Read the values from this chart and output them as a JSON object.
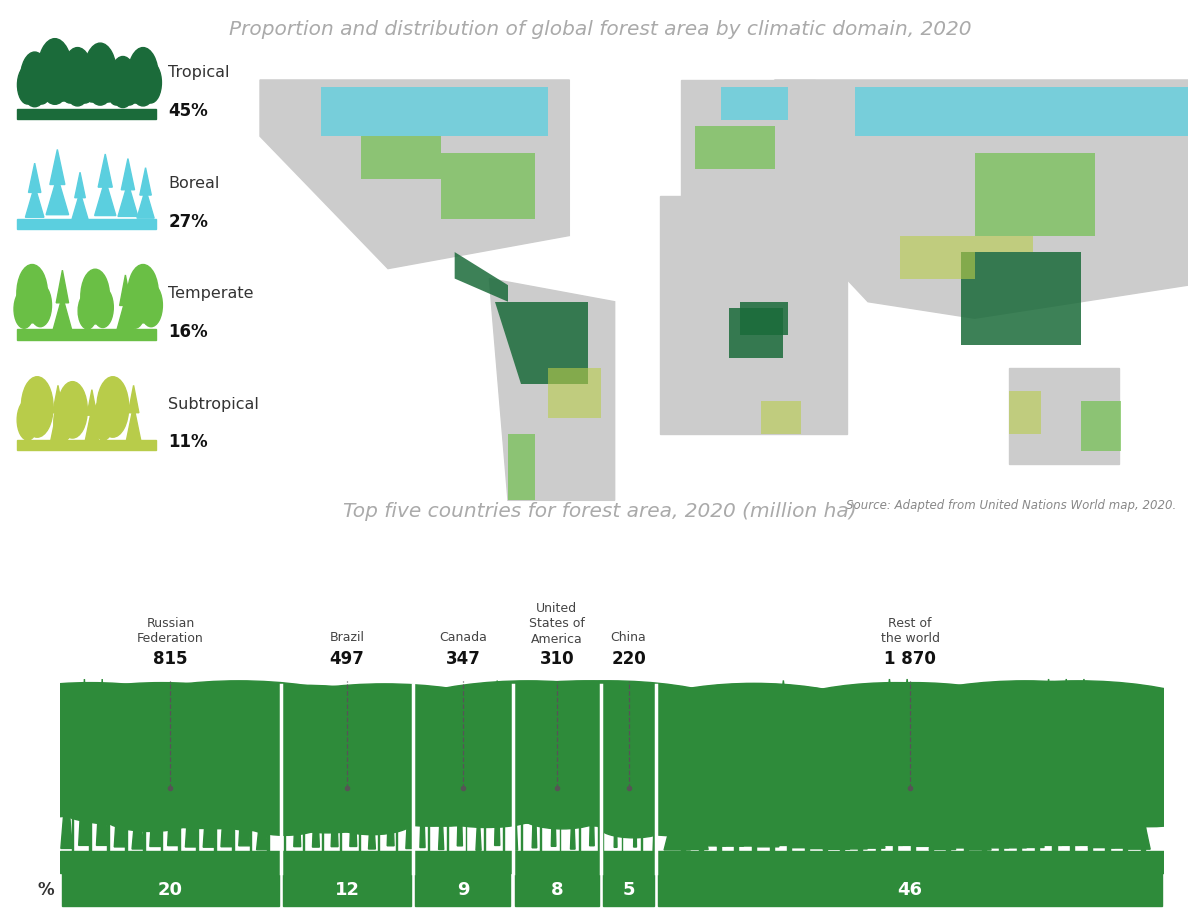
{
  "title_top": "Proportion and distribution of global forest area by climatic domain, 2020",
  "title_bottom": "Top five countries for forest area, 2020 (million ha)",
  "source_text": "Source: Adapted from United Nations World map, 2020.",
  "forest_types": [
    {
      "name": "Tropical",
      "pct": "45%",
      "color": "#1b6b3a"
    },
    {
      "name": "Boreal",
      "pct": "27%",
      "color": "#5bcfdf"
    },
    {
      "name": "Temperate",
      "pct": "16%",
      "color": "#6abf45"
    },
    {
      "name": "Subtropical",
      "pct": "11%",
      "color": "#b8cc4a"
    }
  ],
  "countries": [
    {
      "name": "Russian\nFederation",
      "value": "815",
      "pct": "20"
    },
    {
      "name": "Brazil",
      "value": "497",
      "pct": "12"
    },
    {
      "name": "Canada",
      "value": "347",
      "pct": "9"
    },
    {
      "name": "United\nStates of\nAmerica",
      "value": "310",
      "pct": "8"
    },
    {
      "name": "China",
      "value": "220",
      "pct": "5"
    },
    {
      "name": "Rest of\nthe world",
      "value": "1 870",
      "pct": "46"
    }
  ],
  "bar_color": "#2e8b3a",
  "bar_text_color": "#ffffff",
  "title_color": "#aaaaaa",
  "bg_color": "#ffffff",
  "label_color": "#333333",
  "map_land_color": "#cccccc",
  "map_bg_color": "#ffffff",
  "forest_green_dark": "#1b6b3a",
  "forest_green_light": "#6abf45",
  "forest_cyan": "#5bcfdf",
  "forest_yellow": "#b8cc4a"
}
